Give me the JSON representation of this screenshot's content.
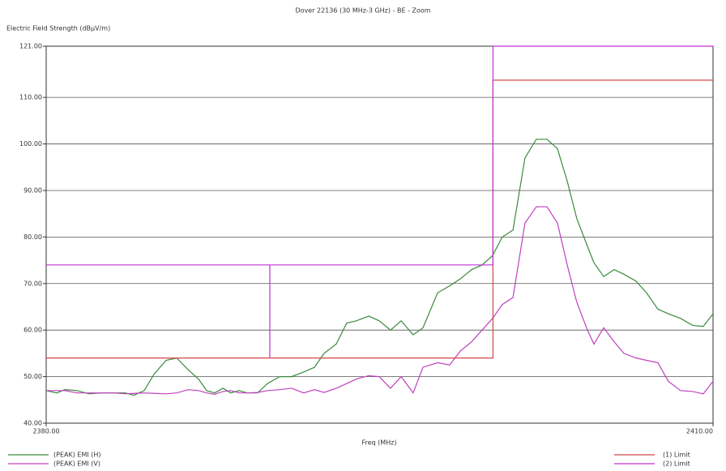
{
  "chart_data": {
    "type": "line",
    "title": "Dover 22136 (30 MHz-3 GHz) - BE - Zoom",
    "y_label": "Electric Field Strength (dBµV/m)",
    "x_label": "Freq (MHz)",
    "xlim": [
      2380,
      2410
    ],
    "xticks": [
      {
        "value": 2380,
        "label": "2380.00"
      },
      {
        "value": 2410,
        "label": "2410.00"
      }
    ],
    "ylim": [
      40,
      121
    ],
    "yticks": [
      {
        "value": 40,
        "label": "40.00"
      },
      {
        "value": 50,
        "label": "50.00"
      },
      {
        "value": 60,
        "label": "60.00"
      },
      {
        "value": 70,
        "label": "70.00"
      },
      {
        "value": 80,
        "label": "80.00"
      },
      {
        "value": 90,
        "label": "90.00"
      },
      {
        "value": 100,
        "label": "100.00"
      },
      {
        "value": 110,
        "label": "110.00"
      },
      {
        "value": 121,
        "label": "121.00"
      }
    ],
    "grid": true,
    "legend": "bottom",
    "series": [
      {
        "name": "(PEAK) EMI (H)",
        "color": "#3a8a3a",
        "x": [
          2380,
          2380.47,
          2380.84,
          2381.39,
          2381.93,
          2382.48,
          2383.03,
          2383.57,
          2383.94,
          2384.41,
          2384.85,
          2385.39,
          2385.87,
          2386.38,
          2386.85,
          2387.22,
          2387.58,
          2387.95,
          2388.31,
          2388.68,
          2389.04,
          2389.51,
          2389.95,
          2390.5,
          2391.04,
          2391.59,
          2392.07,
          2392.5,
          2393.05,
          2393.52,
          2393.96,
          2394.51,
          2394.98,
          2395.49,
          2395.97,
          2396.51,
          2396.95,
          2397.61,
          2398.15,
          2398.63,
          2399.14,
          2399.61,
          2400.08,
          2400.52,
          2401.0,
          2401.54,
          2402.05,
          2402.53,
          2403.0,
          2403.44,
          2403.87,
          2404.35,
          2404.64,
          2405.08,
          2405.55,
          2405.99,
          2406.54,
          2407.01,
          2407.52,
          2407.99,
          2408.54,
          2409.09,
          2409.56,
          2410
        ],
        "values": [
          47,
          46.5,
          47.2,
          47,
          46.3,
          46.5,
          46.5,
          46.5,
          46,
          47,
          50.5,
          53.5,
          54,
          51.5,
          49.5,
          47,
          46.5,
          47.5,
          46.5,
          47,
          46.5,
          46.5,
          48.5,
          50,
          50,
          51,
          52,
          55,
          57,
          61.5,
          62,
          63,
          62,
          60,
          62,
          59,
          60.5,
          68,
          69.5,
          71,
          73,
          74,
          76,
          80,
          81.5,
          97,
          101,
          101,
          99,
          92,
          84,
          78,
          74.5,
          71.5,
          73,
          72,
          70.5,
          68,
          64.5,
          63.5,
          62.5,
          61,
          60.8,
          63.5
        ]
      },
      {
        "name": "(PEAK) EMI (V)",
        "color": "#c040c0",
        "x": [
          2380,
          2380.47,
          2380.84,
          2381.39,
          2381.93,
          2382.48,
          2383.03,
          2383.57,
          2383.94,
          2384.41,
          2384.85,
          2385.39,
          2385.87,
          2386.38,
          2386.85,
          2387.22,
          2387.58,
          2387.95,
          2388.31,
          2388.68,
          2389.04,
          2389.51,
          2389.95,
          2390.5,
          2391.04,
          2391.59,
          2392.07,
          2392.5,
          2393.05,
          2393.52,
          2393.96,
          2394.51,
          2394.98,
          2395.49,
          2395.97,
          2396.51,
          2396.95,
          2397.61,
          2398.15,
          2398.63,
          2399.14,
          2399.61,
          2400.08,
          2400.52,
          2401.0,
          2401.54,
          2402.05,
          2402.53,
          2403.0,
          2403.44,
          2403.87,
          2404.35,
          2404.64,
          2405.08,
          2405.55,
          2405.99,
          2406.54,
          2407.01,
          2407.52,
          2407.99,
          2408.54,
          2409.09,
          2409.56,
          2410
        ],
        "values": [
          47,
          47,
          47,
          46.5,
          46.5,
          46.5,
          46.5,
          46.3,
          46.4,
          46.5,
          46.4,
          46.3,
          46.5,
          47.2,
          47,
          46.5,
          46.2,
          46.8,
          47,
          46.5,
          46.5,
          46.6,
          47,
          47.2,
          47.5,
          46.5,
          47.2,
          46.6,
          47.5,
          48.5,
          49.5,
          50.2,
          50,
          47.5,
          50,
          46.5,
          52,
          53,
          52.5,
          55.5,
          57.5,
          60,
          62.5,
          65.5,
          67,
          83,
          86.5,
          86.5,
          83,
          74,
          66,
          60,
          57,
          60.5,
          57.5,
          55,
          54,
          53.5,
          53,
          49,
          47,
          46.8,
          46.3,
          49
        ]
      },
      {
        "name": "(1) Limit",
        "color": "#d04848",
        "x": [
          2380,
          2400.1,
          2400.1,
          2410
        ],
        "values": [
          54,
          54,
          113.7,
          113.7
        ]
      },
      {
        "name": "(2) Limit",
        "color": "#c030d0",
        "x": [
          2380,
          2400.1,
          2400.1,
          2410,
          null,
          2390.06,
          2390.06
        ],
        "values": [
          74,
          74,
          121,
          121,
          null,
          74,
          54
        ]
      }
    ]
  }
}
